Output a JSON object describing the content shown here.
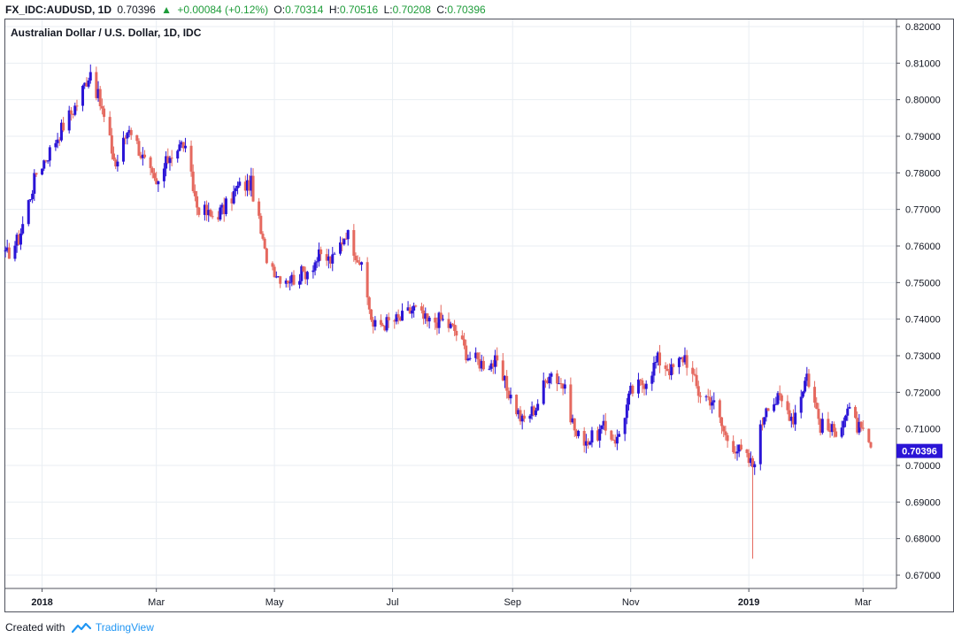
{
  "header": {
    "symbol": "FX_IDC:AUDUSD, 1D",
    "last": "0.70396",
    "change": "+0.00084 (+0.12%)",
    "o_label": "O:",
    "o_value": "0.70314",
    "h_label": "H:",
    "h_value": "0.70516",
    "l_label": "L:",
    "l_value": "0.70208",
    "c_label": "C:",
    "c_value": "0.70396"
  },
  "footer": {
    "prefix": "Created with",
    "brand": "TradingView"
  },
  "colors": {
    "up": "#2a14d6",
    "down": "#e5695f",
    "price_label_bg": "#2a14d6",
    "grid": "#e9eef3",
    "change_up": "#1e9c3a"
  },
  "chart_data": {
    "type": "candlestick",
    "title": "Australian Dollar / U.S. Dollar, 1D, IDC",
    "ylim": [
      0.665,
      0.822
    ],
    "y_ticks": [
      "0.82000",
      "0.81000",
      "0.80000",
      "0.79000",
      "0.78000",
      "0.77000",
      "0.76000",
      "0.75000",
      "0.74000",
      "0.73000",
      "0.72000",
      "0.71000",
      "0.70000",
      "0.69000",
      "0.68000",
      "0.67000"
    ],
    "x_ticks": [
      {
        "label": "2018",
        "bold": true,
        "date": "2018-01-01"
      },
      {
        "label": "Mar",
        "bold": false,
        "date": "2018-03-01"
      },
      {
        "label": "May",
        "bold": false,
        "date": "2018-05-01"
      },
      {
        "label": "Jul",
        "bold": false,
        "date": "2018-07-01"
      },
      {
        "label": "Sep",
        "bold": false,
        "date": "2018-09-01"
      },
      {
        "label": "Nov",
        "bold": false,
        "date": "2018-11-01"
      },
      {
        "label": "2019",
        "bold": true,
        "date": "2019-01-01"
      },
      {
        "label": "Mar",
        "bold": false,
        "date": "2019-03-01"
      }
    ],
    "last_price_label": "0.70396",
    "last_price": 0.70396,
    "close_series": [
      [
        "2017-12-13",
        0.757
      ],
      [
        "2017-12-20",
        0.762
      ],
      [
        "2017-12-29",
        0.78
      ],
      [
        "2018-01-05",
        0.786
      ],
      [
        "2018-01-12",
        0.793
      ],
      [
        "2018-01-19",
        0.799
      ],
      [
        "2018-01-26",
        0.808
      ],
      [
        "2018-02-01",
        0.797
      ],
      [
        "2018-02-08",
        0.782
      ],
      [
        "2018-02-15",
        0.793
      ],
      [
        "2018-02-22",
        0.784
      ],
      [
        "2018-03-01",
        0.776
      ],
      [
        "2018-03-08",
        0.785
      ],
      [
        "2018-03-15",
        0.788
      ],
      [
        "2018-03-22",
        0.771
      ],
      [
        "2018-03-29",
        0.768
      ],
      [
        "2018-04-05",
        0.77
      ],
      [
        "2018-04-12",
        0.776
      ],
      [
        "2018-04-19",
        0.777
      ],
      [
        "2018-04-26",
        0.758
      ],
      [
        "2018-05-03",
        0.752
      ],
      [
        "2018-05-10",
        0.751
      ],
      [
        "2018-05-17",
        0.753
      ],
      [
        "2018-05-24",
        0.757
      ],
      [
        "2018-05-31",
        0.756
      ],
      [
        "2018-06-07",
        0.764
      ],
      [
        "2018-06-14",
        0.756
      ],
      [
        "2018-06-21",
        0.738
      ],
      [
        "2018-06-28",
        0.739
      ],
      [
        "2018-07-05",
        0.74
      ],
      [
        "2018-07-12",
        0.743
      ],
      [
        "2018-07-19",
        0.739
      ],
      [
        "2018-07-26",
        0.74
      ],
      [
        "2018-08-02",
        0.737
      ],
      [
        "2018-08-09",
        0.73
      ],
      [
        "2018-08-16",
        0.728
      ],
      [
        "2018-08-23",
        0.728
      ],
      [
        "2018-08-30",
        0.72
      ],
      [
        "2018-09-06",
        0.712
      ],
      [
        "2018-09-13",
        0.716
      ],
      [
        "2018-09-20",
        0.726
      ],
      [
        "2018-09-27",
        0.722
      ],
      [
        "2018-10-04",
        0.708
      ],
      [
        "2018-10-11",
        0.707
      ],
      [
        "2018-10-18",
        0.71
      ],
      [
        "2018-10-25",
        0.707
      ],
      [
        "2018-11-01",
        0.72
      ],
      [
        "2018-11-08",
        0.723
      ],
      [
        "2018-11-15",
        0.729
      ],
      [
        "2018-11-22",
        0.726
      ],
      [
        "2018-11-29",
        0.73
      ],
      [
        "2018-12-06",
        0.72
      ],
      [
        "2018-12-13",
        0.718
      ],
      [
        "2018-12-20",
        0.708
      ],
      [
        "2018-12-27",
        0.704
      ],
      [
        "2019-01-03",
        0.7
      ],
      [
        "2019-01-10",
        0.717
      ],
      [
        "2019-01-17",
        0.718
      ],
      [
        "2019-01-24",
        0.713
      ],
      [
        "2019-01-31",
        0.725
      ],
      [
        "2019-02-07",
        0.711
      ],
      [
        "2019-02-14",
        0.709
      ],
      [
        "2019-02-21",
        0.715
      ],
      [
        "2019-02-28",
        0.709
      ],
      [
        "2019-03-05",
        0.704
      ]
    ],
    "flash_crash_low": 0.6745,
    "flash_crash_date": "2019-01-03"
  }
}
